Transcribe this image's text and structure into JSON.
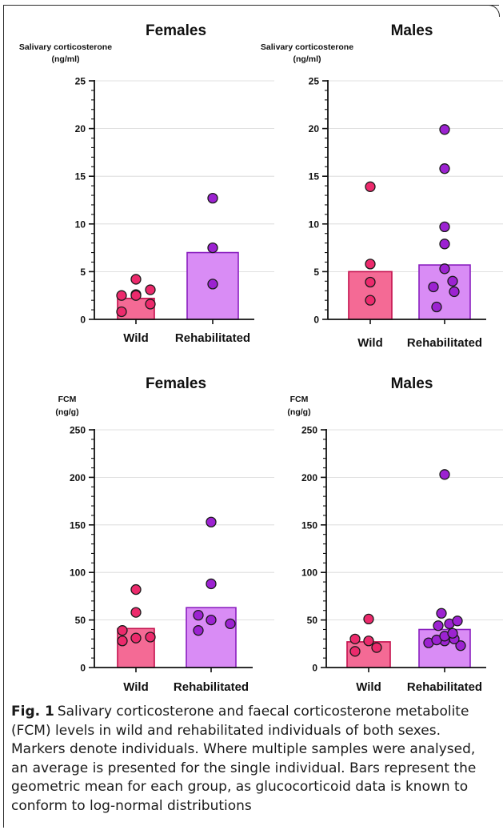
{
  "colors": {
    "wild_fill": "#f46a95",
    "wild_edge": "#c4114e",
    "wild_marker": "#ec2a6c",
    "rehab_fill": "#d98cf5",
    "rehab_edge": "#8a1fbf",
    "rehab_marker": "#9c22d1",
    "axis": "#111111",
    "grid": "#d6d6d6"
  },
  "caption": {
    "label": "Fig. 1",
    "text": "Salivary corticosterone and faecal corticosterone metabolite (FCM) levels in wild and rehabilitated individuals of both sexes. Markers denote individuals. Where multiple samples were analysed, an average is presented for the single individual. Bars represent the geometric mean for each group, as glucocorticoid data is known to conform to log-normal distributions"
  },
  "chart_data": [
    {
      "type": "bar",
      "title": "Females",
      "ylabel": "Salivary corticosterone",
      "ylabel_unit": "(ng/ml)",
      "ylim": [
        0,
        25
      ],
      "yticks": [
        0,
        5,
        10,
        15,
        20,
        25
      ],
      "categories": [
        "Wild",
        "Rehabilitated"
      ],
      "values": [
        2.2,
        7.0
      ],
      "points": [
        [
          0.8,
          1.6,
          2.5,
          3.1,
          4.2,
          2.6,
          2.5
        ],
        [
          3.7,
          7.5,
          12.7
        ]
      ]
    },
    {
      "type": "bar",
      "title": "Males",
      "ylabel": "Salivary corticosterone",
      "ylabel_unit": "(ng/ml)",
      "ylim": [
        0,
        25
      ],
      "yticks": [
        0,
        5,
        10,
        15,
        20,
        25
      ],
      "categories": [
        "Wild",
        "Rehabilitated"
      ],
      "values": [
        5.0,
        5.7
      ],
      "points": [
        [
          2.0,
          3.9,
          5.8,
          13.9
        ],
        [
          1.3,
          2.9,
          3.4,
          4.0,
          5.3,
          7.9,
          9.7,
          15.8,
          19.9
        ]
      ]
    },
    {
      "type": "bar",
      "title": "Females",
      "ylabel": "FCM",
      "ylabel_unit": "(ng/g)",
      "ylim": [
        0,
        250
      ],
      "yticks": [
        0,
        50,
        100,
        150,
        200,
        250
      ],
      "categories": [
        "Wild",
        "Rehabilitated"
      ],
      "values": [
        41,
        63
      ],
      "points": [
        [
          28,
          32,
          31,
          39,
          58,
          82
        ],
        [
          39,
          46,
          50,
          55,
          88,
          153
        ]
      ]
    },
    {
      "type": "bar",
      "title": "Males",
      "ylabel": "FCM",
      "ylabel_unit": "(ng/g)",
      "ylim": [
        0,
        250
      ],
      "yticks": [
        0,
        50,
        100,
        150,
        200,
        250
      ],
      "categories": [
        "Wild",
        "Rehabilitated"
      ],
      "values": [
        27,
        40
      ],
      "points": [
        [
          17,
          21,
          28,
          30,
          51
        ],
        [
          23,
          26,
          28,
          29,
          30,
          33,
          36,
          44,
          46,
          49,
          57,
          203
        ]
      ]
    }
  ]
}
